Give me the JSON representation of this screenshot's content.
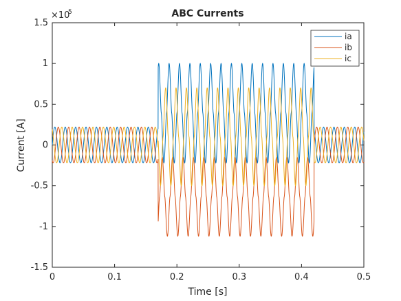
{
  "chart_data": {
    "type": "line",
    "title": "ABC Currents",
    "xlabel": "Time [s]",
    "ylabel": "Current [A]",
    "exponent_label": "×10",
    "exponent_power": "5",
    "xlim": [
      0,
      0.5
    ],
    "ylim": [
      -150000,
      150000
    ],
    "xticks": [
      "0",
      "0.1",
      "0.2",
      "0.3",
      "0.4",
      "0.5"
    ],
    "yticks": [
      "-1.5",
      "-1",
      "-0.5",
      "0",
      "0.5",
      "1",
      "1.5"
    ],
    "grid": false,
    "legend_position": "top-right",
    "normal_amplitude": 22000,
    "fault_window": [
      0.17,
      0.42
    ],
    "frequency_hz": 60,
    "series": [
      {
        "name": "ia",
        "color": "#0072BD",
        "phase_deg": 0,
        "fault_peak_pos": 100000,
        "fault_peak_neg": -22000
      },
      {
        "name": "ib",
        "color": "#D95319",
        "phase_deg": -120,
        "fault_peak_pos": -15000,
        "fault_peak_neg": -112000
      },
      {
        "name": "ic",
        "color": "#EDB120",
        "phase_deg": 120,
        "fault_peak_pos": 70000,
        "fault_peak_neg": -50000
      }
    ]
  }
}
